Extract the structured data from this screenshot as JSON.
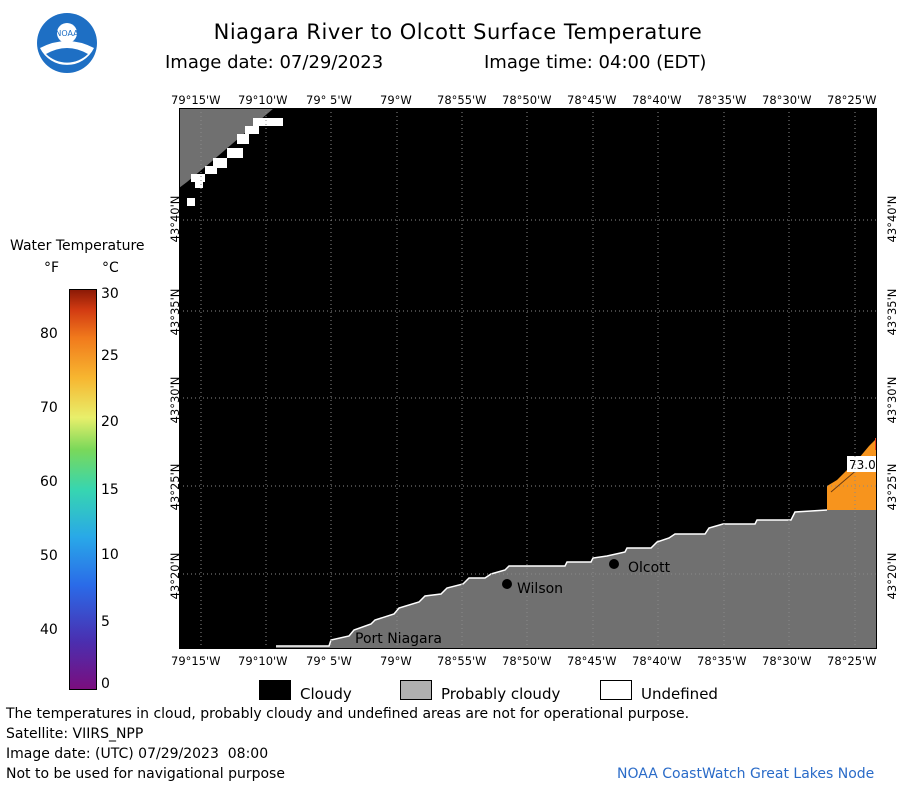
{
  "header": {
    "title": "Niagara River to Olcott Surface Temperature",
    "image_date_label": "Image date: 07/29/2023",
    "image_time_label": "Image time: 04:00 (EDT)",
    "logo_text": "NOAA"
  },
  "map": {
    "lon_ticks": [
      "79°15'W",
      "79°10'W",
      "79° 5'W",
      "79°W",
      "78°55'W",
      "78°50'W",
      "78°45'W",
      "78°40'W",
      "78°35'W",
      "78°30'W",
      "78°25'W"
    ],
    "lat_ticks": [
      "43°40'N",
      "43°35'N",
      "43°30'N",
      "43°25'N",
      "43°20'N"
    ],
    "places": [
      {
        "name": "Olcott"
      },
      {
        "name": "Wilson"
      },
      {
        "name": "Port Niagara"
      }
    ],
    "temp_label": "73.0",
    "colors": {
      "cloudy": "#000000",
      "probably_cloudy": "#707070",
      "land": "#707070",
      "warm_water": "#f7941d"
    }
  },
  "scale": {
    "title": "Water Temperature",
    "unit_f": "°F",
    "unit_c": "°C",
    "f_ticks": [
      "80",
      "70",
      "60",
      "50",
      "40"
    ],
    "c_ticks": [
      "30",
      "25",
      "20",
      "15",
      "10",
      "5",
      "0"
    ]
  },
  "legend": {
    "cloudy": "Cloudy",
    "probably_cloudy": "Probably cloudy",
    "undefined": "Undefined"
  },
  "footer": {
    "disclaimer": "The temperatures in cloud, probably cloudy and undefined areas are not for operational purpose.",
    "satellite": "Satellite: VIIRS_NPP",
    "utc_date": "Image date: (UTC) 07/29/2023  08:00",
    "nav_warning": "Not to be used for navigational purpose",
    "credit": "NOAA CoastWatch Great Lakes Node"
  }
}
